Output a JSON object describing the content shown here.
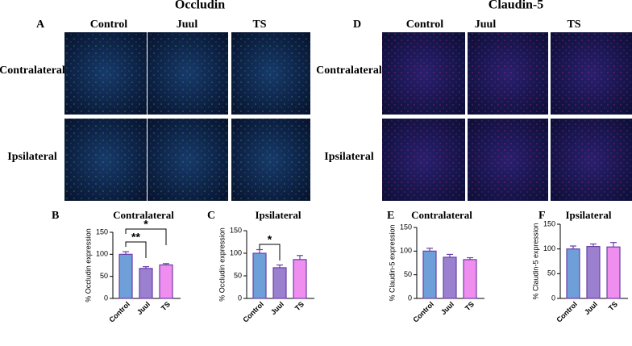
{
  "figure": {
    "left_title": "Occludin",
    "right_title": "Claudin-5",
    "panels": [
      "A",
      "D",
      "B",
      "C",
      "E",
      "F"
    ],
    "left_columns": [
      "Control",
      "Juul",
      "TS"
    ],
    "right_columns": [
      "Control",
      "Juul",
      "TS"
    ],
    "left_rows": [
      "Contralateral",
      "Ipsilateral"
    ],
    "right_rows": [
      "Contralateral",
      "Ipsilateral"
    ]
  },
  "chart_data": [
    {
      "type": "bar",
      "title": "Contralateral",
      "y_label": "% Occludin expression",
      "categories": [
        "Control",
        "Juul",
        "TS"
      ],
      "values": [
        100,
        68,
        76
      ],
      "errors": [
        6,
        4,
        3
      ],
      "colors": [
        "#6f9fd8",
        "#9b80d0",
        "#f08ef0"
      ],
      "ylim": [
        0,
        150
      ],
      "yticks": [
        0,
        50,
        100,
        150
      ],
      "annotations": [
        "**",
        "*"
      ]
    },
    {
      "type": "bar",
      "title": "Ipsilateral",
      "y_label": "% Occludin expression",
      "categories": [
        "Control",
        "Juul",
        "TS"
      ],
      "values": [
        100,
        68,
        86
      ],
      "errors": [
        8,
        6,
        9
      ],
      "colors": [
        "#6f9fd8",
        "#9b80d0",
        "#f08ef0"
      ],
      "ylim": [
        0,
        150
      ],
      "yticks": [
        0,
        50,
        100,
        150
      ],
      "annotations": [
        "*"
      ]
    },
    {
      "type": "bar",
      "title": "Contralateral",
      "y_label": "% Claudin-5 expression",
      "categories": [
        "Control",
        "Juul",
        "TS"
      ],
      "values": [
        100,
        87,
        82
      ],
      "errors": [
        6,
        6,
        4
      ],
      "colors": [
        "#6f9fd8",
        "#9b80d0",
        "#f08ef0"
      ],
      "ylim": [
        0,
        150
      ],
      "yticks": [
        0,
        50,
        100,
        150
      ]
    },
    {
      "type": "bar",
      "title": "Ipsilateral",
      "y_label": "% Claudin-5 expression",
      "categories": [
        "Control",
        "Juul",
        "TS"
      ],
      "values": [
        100,
        105,
        104
      ],
      "errors": [
        6,
        5,
        9
      ],
      "colors": [
        "#6f9fd8",
        "#9b80d0",
        "#f08ef0"
      ],
      "ylim": [
        0,
        150
      ],
      "yticks": [
        0,
        50,
        100,
        150
      ]
    }
  ]
}
